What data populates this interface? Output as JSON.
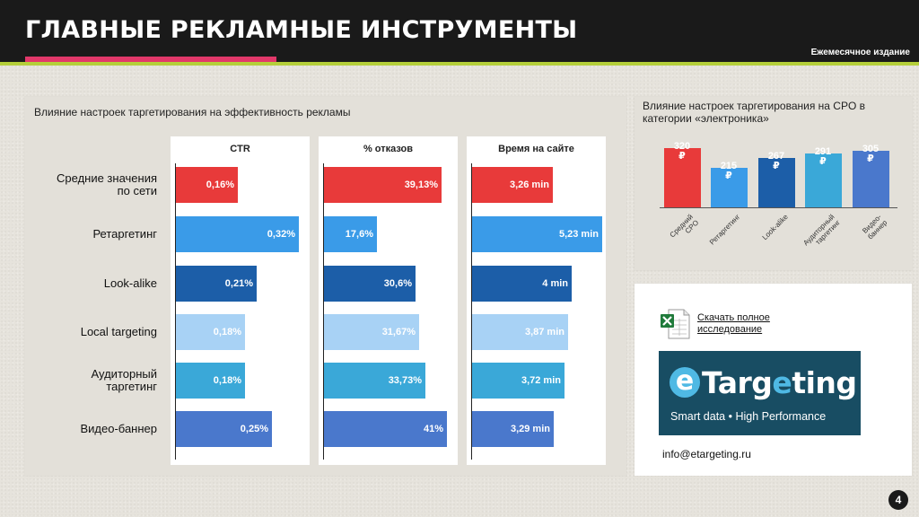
{
  "header": {
    "title": "ГЛАВНЫЕ РЕКЛАМНЫЕ ИНСТРУМЕНТЫ",
    "subtitle": "Ежемесячное издание"
  },
  "main_panel": {
    "title": "Влияние настроек таргетирования на эффективность рекламы"
  },
  "chart_data": [
    {
      "type": "bar",
      "orientation": "horizontal",
      "title": "CTR",
      "categories": [
        "Средние значения по сети",
        "Ретаргетинг",
        "Look-alike",
        "Local targeting",
        "Аудиторный таргетинг",
        "Видео-баннер"
      ],
      "values": [
        0.16,
        0.32,
        0.21,
        0.18,
        0.18,
        0.25
      ],
      "labels": [
        "0,16%",
        "0,32%",
        "0,21%",
        "0,18%",
        "0,18%",
        "0,25%"
      ],
      "colors": [
        "#e83a3a",
        "#3a9be8",
        "#1c5ea8",
        "#a8d2f5",
        "#3aa8d8",
        "#4a78cc"
      ],
      "xlim": [
        0,
        0.32
      ]
    },
    {
      "type": "bar",
      "orientation": "horizontal",
      "title": "%  отказов",
      "categories": [
        "Средние значения по сети",
        "Ретаргетинг",
        "Look-alike",
        "Local targeting",
        "Аудиторный таргетинг",
        "Видео-баннер"
      ],
      "values": [
        39.13,
        17.6,
        30.6,
        31.67,
        33.73,
        41
      ],
      "labels": [
        "39,13%",
        "17,6%",
        "30,6%",
        "31,67%",
        "33,73%",
        "41%"
      ],
      "colors": [
        "#e83a3a",
        "#3a9be8",
        "#1c5ea8",
        "#a8d2f5",
        "#3aa8d8",
        "#4a78cc"
      ],
      "xlim": [
        0,
        41
      ]
    },
    {
      "type": "bar",
      "orientation": "horizontal",
      "title": "Время на сайте",
      "categories": [
        "Средние значения по сети",
        "Ретаргетинг",
        "Look-alike",
        "Local targeting",
        "Аудиторный таргетинг",
        "Видео-баннер"
      ],
      "values": [
        3.26,
        5.23,
        4,
        3.87,
        3.72,
        3.29
      ],
      "labels": [
        "3,26 min",
        "5,23 min",
        "4 min",
        "3,87 min",
        "3,72 min",
        "3,29 min"
      ],
      "colors": [
        "#e83a3a",
        "#3a9be8",
        "#1c5ea8",
        "#a8d2f5",
        "#3aa8d8",
        "#4a78cc"
      ],
      "xlim": [
        0,
        5.23
      ]
    },
    {
      "type": "bar",
      "orientation": "vertical",
      "title": "Влияние настроек таргетирования на CPO в категории «электроника»",
      "categories": [
        "Средний CPO",
        "Ретаргетинг",
        "Look-alike",
        "Аудиторный таргетинг",
        "Видео-баннер"
      ],
      "values": [
        320,
        215,
        267,
        291,
        305
      ],
      "unit": "₽",
      "colors": [
        "#e83a3a",
        "#3a9be8",
        "#1c5ea8",
        "#3aa8d8",
        "#4a78cc"
      ],
      "ylim": [
        0,
        320
      ]
    }
  ],
  "row_labels": [
    "Средние значения\nпо сети",
    "Ретаргетинг",
    "Look-alike",
    "Local targeting",
    "Аудиторный\nтаргетинг",
    "Видео-баннер"
  ],
  "cpo_categories_display": [
    "Средний\nCPO",
    "Ретаргетинг",
    "Look-alike",
    "Аудиторный\nтаргетинг",
    "Видео-\nбаннер"
  ],
  "links": {
    "download_label": "Скачать полное исследование",
    "logo_word_part1": "Targ",
    "logo_word_part2": "e",
    "logo_word_part3": "ting",
    "logo_tagline": "Smart data  •  High Performance",
    "email": "info@etargeting.ru"
  },
  "page_number": "4"
}
